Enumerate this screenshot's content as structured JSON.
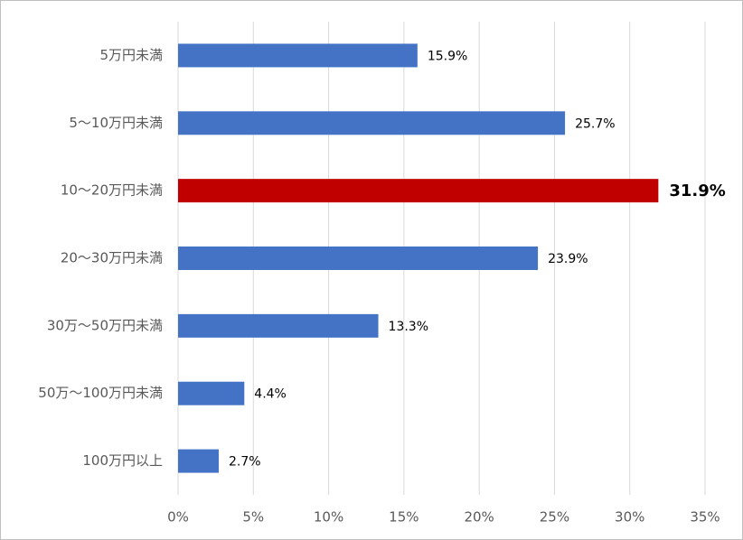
{
  "chart_data": {
    "type": "barh",
    "categories": [
      "5万円未満",
      "5～10万円未満",
      "10～20万円未満",
      "20～30万円未満",
      "30万～50万円未満",
      "50万～100万円未満",
      "100万円以上"
    ],
    "values": [
      15.9,
      25.7,
      31.9,
      23.9,
      13.3,
      4.4,
      2.7
    ],
    "value_labels": [
      "15.9%",
      "25.7%",
      "31.9%",
      "23.9%",
      "13.3%",
      "4.4%",
      "2.7%"
    ],
    "colors": [
      "#4472c4",
      "#4472c4",
      "#c00000",
      "#4472c4",
      "#4472c4",
      "#4472c4",
      "#4472c4"
    ],
    "bold_labels": [
      false,
      false,
      true,
      false,
      false,
      false,
      false
    ],
    "xlim": [
      0,
      35
    ],
    "xticks": [
      {
        "value": 0,
        "label": "0%"
      },
      {
        "value": 5,
        "label": "5%"
      },
      {
        "value": 10,
        "label": "10%"
      },
      {
        "value": 15,
        "label": "15%"
      },
      {
        "value": 20,
        "label": "20%"
      },
      {
        "value": 25,
        "label": "25%"
      },
      {
        "value": 30,
        "label": "30%"
      },
      {
        "value": 35,
        "label": "35%"
      }
    ],
    "grid": true
  }
}
